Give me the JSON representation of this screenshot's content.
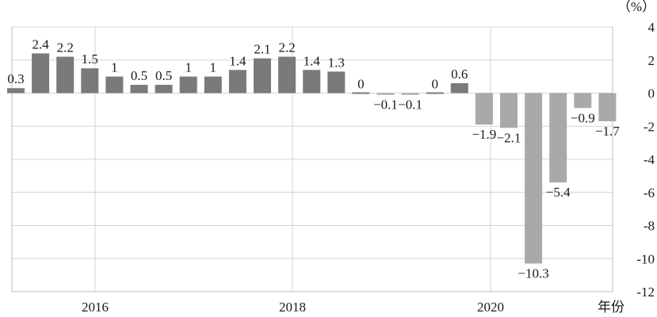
{
  "chart_data": {
    "type": "bar",
    "values": [
      0.3,
      2.4,
      2.2,
      1.5,
      1,
      0.5,
      0.5,
      1,
      1,
      1.4,
      2.1,
      2.2,
      1.4,
      1.3,
      0,
      -0.1,
      -0.1,
      0,
      0.6,
      -1.9,
      -2.1,
      -10.3,
      -5.4,
      -0.9,
      -1.7
    ],
    "value_labels": [
      "0.3",
      "2.4",
      "2.2",
      "1.5",
      "1",
      "0.5",
      "0.5",
      "1",
      "1",
      "1.4",
      "2.1",
      "2.2",
      "1.4",
      "1.3",
      "0",
      "−0.1",
      "−0.1",
      "0",
      "0.6",
      "−1.9",
      "−2.1",
      "−10.3",
      "−5.4",
      "−0.9",
      "−1.7"
    ],
    "x_ticks": [
      "2016",
      "2018",
      "2020"
    ],
    "y_ticks": [
      "4",
      "2",
      "0",
      "-2",
      "-4",
      "-6",
      "-8",
      "-10",
      "-12"
    ],
    "y_tick_values": [
      4,
      2,
      0,
      -2,
      -4,
      -6,
      -8,
      -10,
      -12
    ],
    "ylim": [
      -12,
      4
    ],
    "y_unit": "（%）",
    "x_unit": "年份",
    "grid": true,
    "colors": {
      "positive": "#7a7a7a",
      "negative": "#a9a9a9",
      "grid": "#d4d4d4"
    }
  }
}
